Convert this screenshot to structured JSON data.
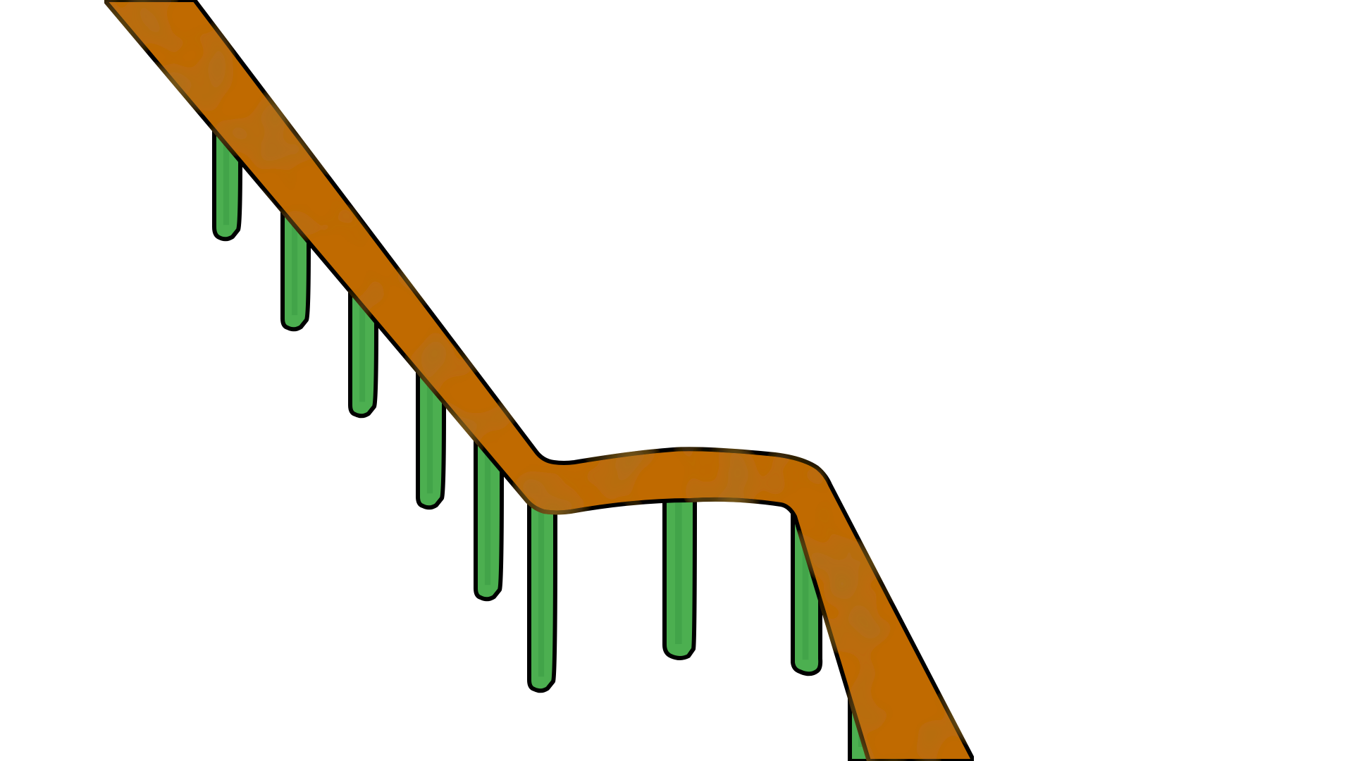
{
  "scene": {
    "subject": "handrail-with-balusters",
    "colors": {
      "background": "#ffffff",
      "rail": "#c06a00",
      "rail_shade": "#a85a12",
      "baluster": "#4caf50",
      "baluster_shade": "#3a9a44",
      "outline": "#000000"
    },
    "baluster_count": 10
  }
}
